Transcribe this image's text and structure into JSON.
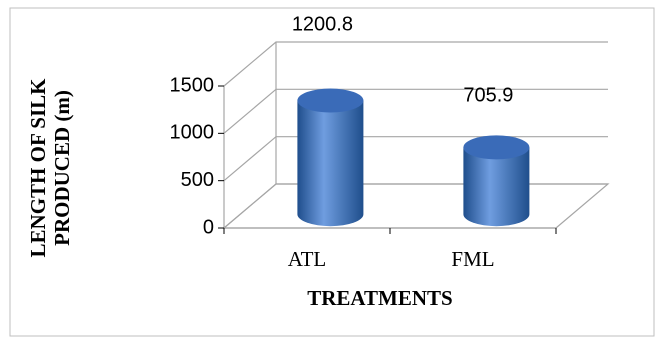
{
  "chart_data": {
    "type": "bar",
    "style": "3d-cylinder",
    "categories": [
      "ATL",
      "FML"
    ],
    "values": [
      1200.8,
      705.9
    ],
    "data_labels": [
      "1200.8",
      "705.9"
    ],
    "xlabel": "TREATMENTS",
    "ylabel": "LENGTH OF SILK PRODUCED (m)",
    "ylabel_lines": [
      "LENGTH OF SILK",
      "PRODUCED (m)"
    ],
    "ylim": [
      0,
      1500
    ],
    "yticks": [
      0,
      500,
      1000,
      1500
    ],
    "ytick_labels": [
      "0",
      "500",
      "1000",
      "1500"
    ],
    "grid": true,
    "legend": "none",
    "colors": {
      "bar_dark": "#1f4e8c",
      "bar_mid": "#4a7fd0",
      "bar_light": "#6f9de0",
      "bar_top": "#3a6bb8",
      "grid": "#a6a6a6",
      "border": "#bfbfbf",
      "text": "#000000"
    }
  }
}
